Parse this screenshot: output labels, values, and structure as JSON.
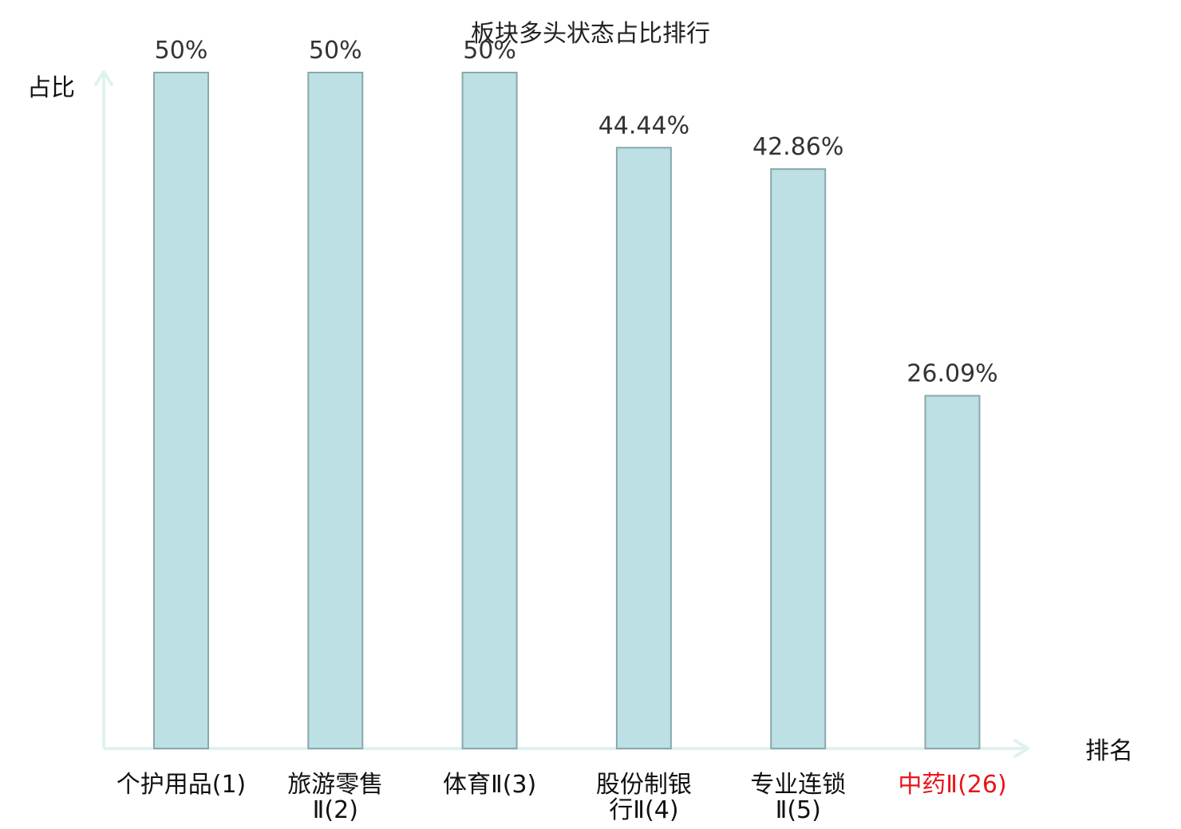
{
  "chart_data": {
    "type": "bar",
    "title": "板块多头状态占比排行",
    "ylabel": "占比",
    "xlabel": "排名",
    "ylim": [
      0,
      50
    ],
    "grid": false,
    "categories": [
      [
        "个护用品(1)"
      ],
      [
        "旅游零售",
        "Ⅱ(2)"
      ],
      [
        "体育Ⅱ(3)"
      ],
      [
        "股份制银",
        "行Ⅱ(4)"
      ],
      [
        "专业连锁",
        "Ⅱ(5)"
      ],
      [
        "中药Ⅱ(26)"
      ]
    ],
    "values": [
      50,
      50,
      50,
      44.44,
      42.86,
      26.09
    ],
    "value_labels": [
      "50%",
      "50%",
      "50%",
      "44.44%",
      "42.86%",
      "26.09%"
    ],
    "highlight_index": 5,
    "colors": {
      "bar_fill": "#bce0e3",
      "bar_stroke": "#8aa8ac",
      "axis": "#dff2ef",
      "category_text": "#111111",
      "highlight_text": "#e8161b"
    }
  }
}
